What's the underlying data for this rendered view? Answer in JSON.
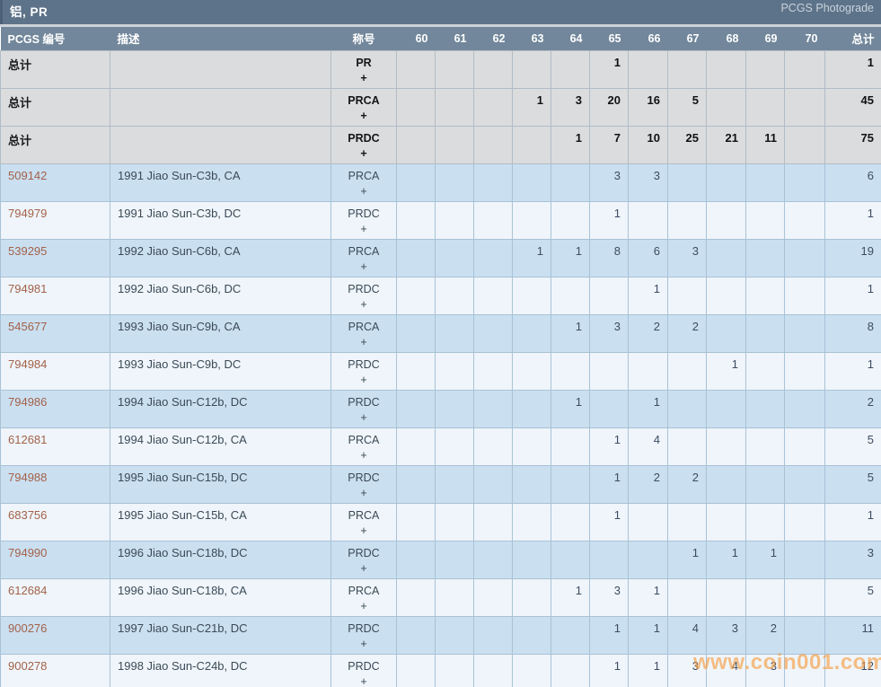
{
  "header": {
    "title": "铝, PR",
    "brand": "PCGS Photograde"
  },
  "colors": {
    "title_bar": "#5d7389",
    "header_row": "#72879b",
    "row_blue": "#cadff0",
    "row_light": "#eff5fa",
    "row_total_gray": "#dadcde",
    "link": "#a3624a",
    "watermark": "#f7993a"
  },
  "table": {
    "columns": {
      "pcgs_number": "PCGS 编号",
      "description": "描述",
      "designation": "称号",
      "grades": [
        "60",
        "61",
        "62",
        "63",
        "64",
        "65",
        "66",
        "67",
        "68",
        "69",
        "70"
      ],
      "total": "总计"
    },
    "plus_suffix": "+",
    "rows": [
      {
        "pcgs_number": "总计",
        "description": "",
        "designation": "PR",
        "is_total": true,
        "grades": [
          null,
          null,
          null,
          null,
          null,
          1,
          null,
          null,
          null,
          null,
          null
        ],
        "total": 1
      },
      {
        "pcgs_number": "总计",
        "description": "",
        "designation": "PRCA",
        "is_total": true,
        "grades": [
          null,
          null,
          null,
          1,
          3,
          20,
          16,
          5,
          null,
          null,
          null
        ],
        "total": 45
      },
      {
        "pcgs_number": "总计",
        "description": "",
        "designation": "PRDC",
        "is_total": true,
        "grades": [
          null,
          null,
          null,
          null,
          1,
          7,
          10,
          25,
          21,
          11,
          null
        ],
        "total": 75
      },
      {
        "pcgs_number": "509142",
        "description": "1991 Jiao Sun-C3b, CA",
        "designation": "PRCA",
        "is_total": false,
        "grades": [
          null,
          null,
          null,
          null,
          null,
          3,
          3,
          null,
          null,
          null,
          null
        ],
        "total": 6
      },
      {
        "pcgs_number": "794979",
        "description": "1991 Jiao Sun-C3b, DC",
        "designation": "PRDC",
        "is_total": false,
        "grades": [
          null,
          null,
          null,
          null,
          null,
          1,
          null,
          null,
          null,
          null,
          null
        ],
        "total": 1
      },
      {
        "pcgs_number": "539295",
        "description": "1992 Jiao Sun-C6b, CA",
        "designation": "PRCA",
        "is_total": false,
        "grades": [
          null,
          null,
          null,
          1,
          1,
          8,
          6,
          3,
          null,
          null,
          null
        ],
        "total": 19
      },
      {
        "pcgs_number": "794981",
        "description": "1992 Jiao Sun-C6b, DC",
        "designation": "PRDC",
        "is_total": false,
        "grades": [
          null,
          null,
          null,
          null,
          null,
          null,
          1,
          null,
          null,
          null,
          null
        ],
        "total": 1
      },
      {
        "pcgs_number": "545677",
        "description": "1993 Jiao Sun-C9b, CA",
        "designation": "PRCA",
        "is_total": false,
        "grades": [
          null,
          null,
          null,
          null,
          1,
          3,
          2,
          2,
          null,
          null,
          null
        ],
        "total": 8
      },
      {
        "pcgs_number": "794984",
        "description": "1993 Jiao Sun-C9b, DC",
        "designation": "PRDC",
        "is_total": false,
        "grades": [
          null,
          null,
          null,
          null,
          null,
          null,
          null,
          null,
          1,
          null,
          null
        ],
        "total": 1
      },
      {
        "pcgs_number": "794986",
        "description": "1994 Jiao Sun-C12b, DC",
        "designation": "PRDC",
        "is_total": false,
        "grades": [
          null,
          null,
          null,
          null,
          1,
          null,
          1,
          null,
          null,
          null,
          null
        ],
        "total": 2
      },
      {
        "pcgs_number": "612681",
        "description": "1994 Jiao Sun-C12b, CA",
        "designation": "PRCA",
        "is_total": false,
        "grades": [
          null,
          null,
          null,
          null,
          null,
          1,
          4,
          null,
          null,
          null,
          null
        ],
        "total": 5
      },
      {
        "pcgs_number": "794988",
        "description": "1995 Jiao Sun-C15b, DC",
        "designation": "PRDC",
        "is_total": false,
        "grades": [
          null,
          null,
          null,
          null,
          null,
          1,
          2,
          2,
          null,
          null,
          null
        ],
        "total": 5
      },
      {
        "pcgs_number": "683756",
        "description": "1995 Jiao Sun-C15b, CA",
        "designation": "PRCA",
        "is_total": false,
        "grades": [
          null,
          null,
          null,
          null,
          null,
          1,
          null,
          null,
          null,
          null,
          null
        ],
        "total": 1
      },
      {
        "pcgs_number": "794990",
        "description": "1996 Jiao Sun-C18b, DC",
        "designation": "PRDC",
        "is_total": false,
        "grades": [
          null,
          null,
          null,
          null,
          null,
          null,
          null,
          1,
          1,
          1,
          null
        ],
        "total": 3
      },
      {
        "pcgs_number": "612684",
        "description": "1996 Jiao Sun-C18b, CA",
        "designation": "PRCA",
        "is_total": false,
        "grades": [
          null,
          null,
          null,
          null,
          1,
          3,
          1,
          null,
          null,
          null,
          null
        ],
        "total": 5
      },
      {
        "pcgs_number": "900276",
        "description": "1997 Jiao Sun-C21b, DC",
        "designation": "PRDC",
        "is_total": false,
        "grades": [
          null,
          null,
          null,
          null,
          null,
          1,
          1,
          4,
          3,
          2,
          null
        ],
        "total": 11
      },
      {
        "pcgs_number": "900278",
        "description": "1998 Jiao Sun-C24b, DC",
        "designation": "PRDC",
        "is_total": false,
        "grades": [
          null,
          null,
          null,
          null,
          null,
          1,
          1,
          3,
          4,
          3,
          null
        ],
        "total": 12
      }
    ]
  },
  "watermark": {
    "text": "www.coin001.com"
  }
}
